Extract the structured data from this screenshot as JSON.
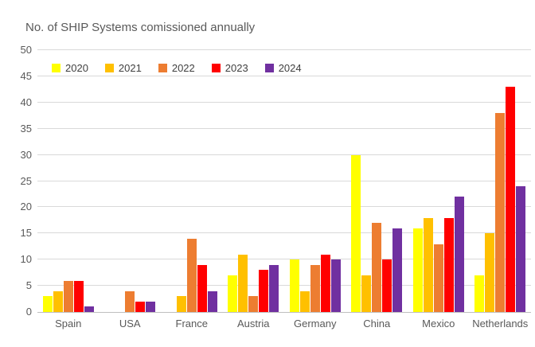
{
  "title": "No. of SHIP Systems comissioned annually",
  "chart_data": {
    "type": "bar",
    "title": "No. of SHIP Systems comissioned annually",
    "categories": [
      "Spain",
      "USA",
      "France",
      "Austria",
      "Germany",
      "China",
      "Mexico",
      "Netherlands"
    ],
    "series": [
      {
        "name": "2020",
        "color": "#FFFF00",
        "values": [
          3,
          0,
          0,
          7,
          10,
          30,
          16,
          7
        ]
      },
      {
        "name": "2021",
        "color": "#FFC000",
        "values": [
          4,
          0,
          3,
          11,
          4,
          7,
          18,
          15
        ]
      },
      {
        "name": "2022",
        "color": "#ED7D31",
        "values": [
          6,
          4,
          14,
          3,
          9,
          17,
          13,
          38
        ]
      },
      {
        "name": "2023",
        "color": "#FF0000",
        "values": [
          6,
          2,
          9,
          8,
          11,
          10,
          18,
          43
        ]
      },
      {
        "name": "2024",
        "color": "#7030A0",
        "values": [
          1,
          2,
          4,
          9,
          10,
          16,
          22,
          24
        ]
      }
    ],
    "xlabel": "",
    "ylabel": "",
    "ylim": [
      0,
      50
    ],
    "yticks": [
      0,
      5,
      10,
      15,
      20,
      25,
      30,
      35,
      40,
      45,
      50
    ],
    "grid": true,
    "legend_position": "top-left-inside"
  },
  "colors": {
    "background": "#FFFFFF",
    "grid": "#D9D9D9",
    "axis": "#BFBFBF",
    "text": "#595959"
  }
}
